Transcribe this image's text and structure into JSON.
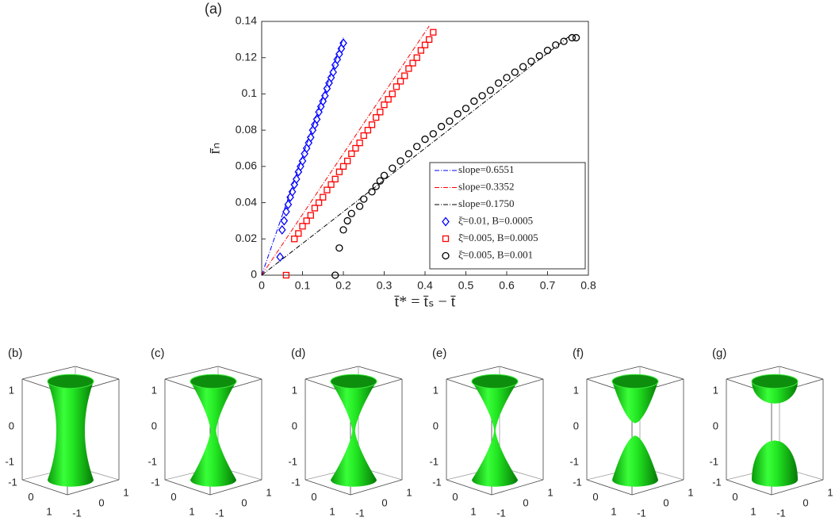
{
  "chart_data": {
    "type": "scatter",
    "panel_label": "(a)",
    "xlabel": "t̄* = t̄ₛ − t̄",
    "ylabel": "r̄ₙ",
    "xlim": [
      0,
      0.8
    ],
    "ylim": [
      0,
      0.14
    ],
    "xticks": [
      0,
      0.1,
      0.2,
      0.3,
      0.4,
      0.5,
      0.6,
      0.7,
      0.8
    ],
    "yticks": [
      0,
      0.02,
      0.04,
      0.06,
      0.08,
      0.1,
      0.12,
      0.14
    ],
    "series": [
      {
        "name": "slope=0.6551",
        "style": "line",
        "color": "#0000ff",
        "x": [
          0,
          0.2
        ],
        "values": [
          0,
          0.131
        ]
      },
      {
        "name": "slope=0.3352",
        "style": "line",
        "color": "#ff0000",
        "x": [
          0,
          0.41
        ],
        "values": [
          0,
          0.1374
        ]
      },
      {
        "name": "slope=0.1750",
        "style": "line",
        "color": "#000000",
        "x": [
          0,
          0.76
        ],
        "values": [
          0,
          0.133
        ]
      },
      {
        "name": "ξ̄=0.01, B=0.0005",
        "style": "marker",
        "marker": "diamond",
        "color": "#0000ff",
        "x": [
          0.045,
          0.05,
          0.055,
          0.06,
          0.065,
          0.07,
          0.075,
          0.08,
          0.085,
          0.09,
          0.095,
          0.1,
          0.105,
          0.11,
          0.115,
          0.12,
          0.125,
          0.13,
          0.135,
          0.14,
          0.145,
          0.15,
          0.155,
          0.16,
          0.165,
          0.17,
          0.175,
          0.18,
          0.185,
          0.19,
          0.195,
          0.2
        ],
        "values": [
          0.01,
          0.025,
          0.03,
          0.035,
          0.039,
          0.043,
          0.046,
          0.05,
          0.053,
          0.057,
          0.06,
          0.063,
          0.067,
          0.07,
          0.073,
          0.076,
          0.08,
          0.083,
          0.086,
          0.09,
          0.093,
          0.096,
          0.099,
          0.103,
          0.106,
          0.109,
          0.112,
          0.116,
          0.119,
          0.122,
          0.125,
          0.128
        ]
      },
      {
        "name": "ξ̄=0.005, B=0.0005",
        "style": "marker",
        "marker": "square",
        "color": "#ff0000",
        "x": [
          0.06,
          0.08,
          0.09,
          0.1,
          0.11,
          0.12,
          0.13,
          0.14,
          0.15,
          0.16,
          0.17,
          0.18,
          0.19,
          0.2,
          0.21,
          0.22,
          0.23,
          0.24,
          0.25,
          0.26,
          0.27,
          0.28,
          0.29,
          0.3,
          0.31,
          0.32,
          0.33,
          0.34,
          0.35,
          0.36,
          0.37,
          0.38,
          0.39,
          0.4,
          0.41,
          0.42
        ],
        "values": [
          0,
          0.02,
          0.023,
          0.027,
          0.03,
          0.033,
          0.037,
          0.04,
          0.043,
          0.047,
          0.05,
          0.053,
          0.057,
          0.06,
          0.063,
          0.067,
          0.07,
          0.073,
          0.077,
          0.08,
          0.083,
          0.087,
          0.09,
          0.094,
          0.097,
          0.1,
          0.104,
          0.107,
          0.11,
          0.114,
          0.117,
          0.12,
          0.124,
          0.127,
          0.13,
          0.134
        ]
      },
      {
        "name": "ξ̄=0.005, B=0.001",
        "style": "marker",
        "marker": "circle",
        "color": "#000000",
        "x": [
          0.18,
          0.19,
          0.2,
          0.21,
          0.22,
          0.24,
          0.25,
          0.27,
          0.28,
          0.29,
          0.3,
          0.32,
          0.34,
          0.36,
          0.38,
          0.4,
          0.42,
          0.44,
          0.46,
          0.48,
          0.5,
          0.52,
          0.54,
          0.56,
          0.58,
          0.6,
          0.62,
          0.64,
          0.66,
          0.68,
          0.7,
          0.72,
          0.74,
          0.76,
          0.77
        ],
        "values": [
          0,
          0.015,
          0.025,
          0.03,
          0.034,
          0.038,
          0.042,
          0.046,
          0.049,
          0.052,
          0.055,
          0.059,
          0.063,
          0.067,
          0.071,
          0.075,
          0.078,
          0.082,
          0.085,
          0.089,
          0.092,
          0.096,
          0.099,
          0.102,
          0.106,
          0.109,
          0.112,
          0.115,
          0.118,
          0.121,
          0.124,
          0.127,
          0.129,
          0.131,
          0.131
        ]
      }
    ]
  },
  "surface_panels": {
    "labels": [
      "(b)",
      "(c)",
      "(d)",
      "(e)",
      "(f)",
      "(g)"
    ],
    "zticks": [
      -1,
      0,
      1
    ],
    "xticks": [
      -1,
      0,
      1
    ],
    "yticks": [
      -1,
      0,
      1
    ]
  }
}
